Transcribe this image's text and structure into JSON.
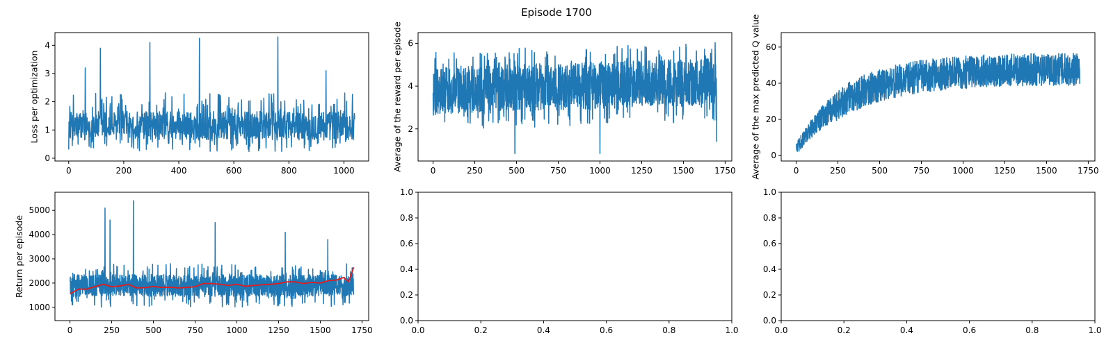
{
  "figure": {
    "title": "Episode 1700",
    "colors": {
      "series": "#1f77b4",
      "average": "#e41a1c",
      "axes": "#000000",
      "background": "#ffffff"
    }
  },
  "chart_data": [
    {
      "type": "line",
      "ylabel": "Loss per optimization",
      "xlim": [
        -50,
        1090
      ],
      "ylim": [
        -0.1,
        4.45
      ],
      "xticks": [
        0,
        200,
        400,
        600,
        800,
        1000
      ],
      "yticks": [
        0,
        1,
        2,
        3,
        4
      ],
      "series": [
        {
          "n": 1040,
          "baseline": 1.1,
          "spread": 0.85,
          "min": 0.2,
          "spikes": [
            [
              60,
              3.2
            ],
            [
              115,
              3.9
            ],
            [
              295,
              4.1
            ],
            [
              475,
              4.25
            ],
            [
              760,
              4.3
            ],
            [
              935,
              3.1
            ]
          ]
        }
      ]
    },
    {
      "type": "line",
      "ylabel": "Average of the reward per episode",
      "xlim": [
        -90,
        1790
      ],
      "ylim": [
        0.5,
        6.5
      ],
      "xticks": [
        0,
        250,
        500,
        750,
        1000,
        1250,
        1500,
        1750
      ],
      "yticks": [
        2,
        4,
        6
      ],
      "series": [
        {
          "n": 1700,
          "start": 3.8,
          "end": 4.2,
          "spread": 1.1,
          "dips": [
            [
              490,
              0.85
            ],
            [
              1000,
              0.85
            ],
            [
              1700,
              1.4
            ]
          ]
        }
      ]
    },
    {
      "type": "line",
      "ylabel": "Average of the max predicted Q value",
      "xlim": [
        -90,
        1790
      ],
      "ylim": [
        -3,
        68
      ],
      "xticks": [
        0,
        250,
        500,
        750,
        1000,
        1250,
        1500,
        1750
      ],
      "yticks": [
        0,
        20,
        40,
        60
      ],
      "series": [
        {
          "n": 1700,
          "start": 4,
          "plateau": 48,
          "spread": 9,
          "min": 2,
          "max": 65
        }
      ]
    },
    {
      "type": "line",
      "ylabel": "Return per episode",
      "xlim": [
        -90,
        1790
      ],
      "ylim": [
        450,
        5750
      ],
      "xticks": [
        0,
        250,
        500,
        750,
        1000,
        1250,
        1500,
        1750
      ],
      "yticks": [
        1000,
        2000,
        3000,
        4000,
        5000
      ],
      "series": [
        {
          "n": 1700,
          "baseline": 1900,
          "spread": 450,
          "min": 650,
          "max": 5400,
          "spikes": [
            [
              210,
              5100
            ],
            [
              240,
              4600
            ],
            [
              380,
              5400
            ],
            [
              870,
              4500
            ],
            [
              1290,
              4100
            ],
            [
              1545,
              3800
            ]
          ]
        },
        {
          "kind": "moving_average",
          "points": [
            [
              0,
              1550
            ],
            [
              50,
              1750
            ],
            [
              100,
              1750
            ],
            [
              150,
              1850
            ],
            [
              200,
              1950
            ],
            [
              250,
              1850
            ],
            [
              300,
              1880
            ],
            [
              350,
              1950
            ],
            [
              400,
              1800
            ],
            [
              450,
              1810
            ],
            [
              500,
              1860
            ],
            [
              550,
              1820
            ],
            [
              600,
              1830
            ],
            [
              650,
              1800
            ],
            [
              700,
              1820
            ],
            [
              750,
              1850
            ],
            [
              800,
              1980
            ],
            [
              850,
              1980
            ],
            [
              900,
              1950
            ],
            [
              950,
              1900
            ],
            [
              1000,
              1950
            ],
            [
              1050,
              1870
            ],
            [
              1100,
              1900
            ],
            [
              1150,
              1930
            ],
            [
              1200,
              1950
            ],
            [
              1250,
              1980
            ],
            [
              1300,
              2050
            ],
            [
              1350,
              2050
            ],
            [
              1400,
              1980
            ],
            [
              1450,
              2030
            ],
            [
              1500,
              2000
            ],
            [
              1550,
              2100
            ],
            [
              1600,
              2130
            ],
            [
              1640,
              2230
            ],
            [
              1670,
              2050
            ],
            [
              1700,
              2650
            ]
          ]
        }
      ]
    },
    {
      "type": "line",
      "xlim": [
        0,
        1
      ],
      "ylim": [
        0,
        1
      ],
      "xticks": [
        0.0,
        0.2,
        0.4,
        0.6,
        0.8,
        1.0
      ],
      "yticks": [
        0.0,
        0.2,
        0.4,
        0.6,
        0.8,
        1.0
      ],
      "series": []
    },
    {
      "type": "line",
      "xlim": [
        0,
        1
      ],
      "ylim": [
        0,
        1
      ],
      "xticks": [
        0.0,
        0.2,
        0.4,
        0.6,
        0.8,
        1.0
      ],
      "yticks": [
        0.0,
        0.2,
        0.4,
        0.6,
        0.8,
        1.0
      ],
      "series": []
    }
  ]
}
